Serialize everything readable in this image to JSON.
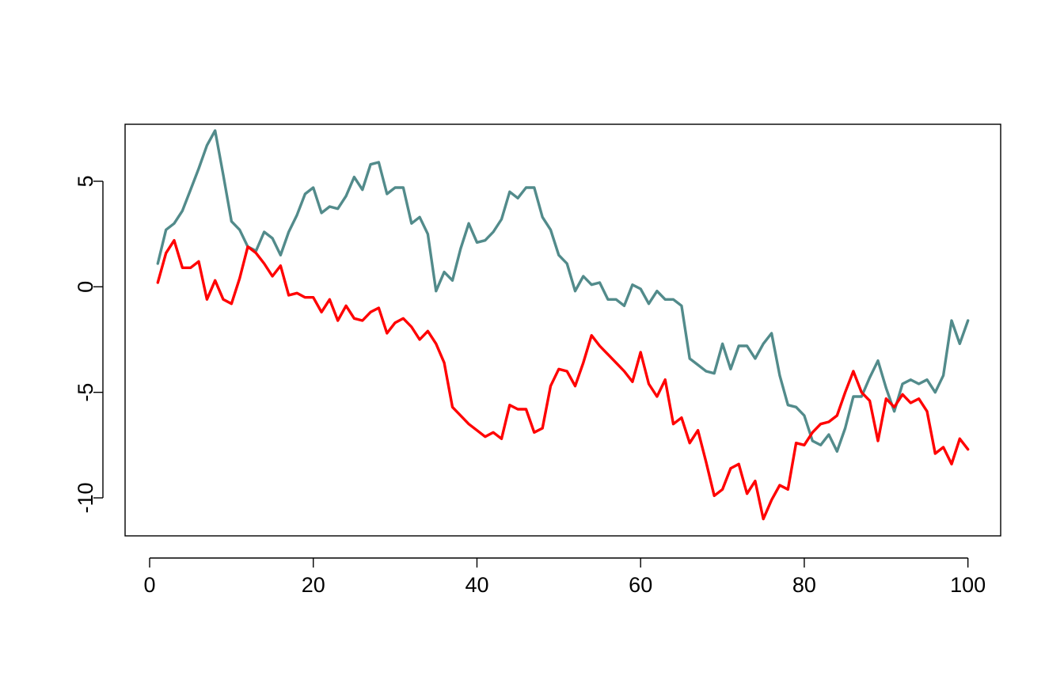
{
  "chart_data": {
    "type": "line",
    "title": "",
    "xlabel": "",
    "ylabel": "",
    "xlim": [
      -3,
      104
    ],
    "ylim": [
      -11.8,
      7.7
    ],
    "grid": false,
    "legend": "none",
    "x_ticks": [
      0,
      20,
      40,
      60,
      80,
      100
    ],
    "x_tick_labels": [
      "0",
      "20",
      "40",
      "60",
      "80",
      "100"
    ],
    "y_ticks": [
      -10,
      -5,
      0,
      5
    ],
    "y_tick_labels": [
      "-10",
      "-5",
      "0",
      "5"
    ],
    "x": [
      1,
      2,
      3,
      4,
      5,
      6,
      7,
      8,
      9,
      10,
      11,
      12,
      13,
      14,
      15,
      16,
      17,
      18,
      19,
      20,
      21,
      22,
      23,
      24,
      25,
      26,
      27,
      28,
      29,
      30,
      31,
      32,
      33,
      34,
      35,
      36,
      37,
      38,
      39,
      40,
      41,
      42,
      43,
      44,
      45,
      46,
      47,
      48,
      49,
      50,
      51,
      52,
      53,
      54,
      55,
      56,
      57,
      58,
      59,
      60,
      61,
      62,
      63,
      64,
      65,
      66,
      67,
      68,
      69,
      70,
      71,
      72,
      73,
      74,
      75,
      76,
      77,
      78,
      79,
      80,
      81,
      82,
      83,
      84,
      85,
      86,
      87,
      88,
      89,
      90,
      91,
      92,
      93,
      94,
      95,
      96,
      97,
      98,
      99,
      100
    ],
    "series": [
      {
        "color": "#528b8b",
        "values": [
          1.1,
          2.7,
          3.0,
          3.6,
          4.6,
          5.6,
          6.7,
          7.4,
          5.3,
          3.1,
          2.7,
          1.9,
          1.7,
          2.6,
          2.3,
          1.5,
          2.6,
          3.4,
          4.4,
          4.7,
          3.5,
          3.8,
          3.7,
          4.3,
          5.2,
          4.6,
          5.8,
          5.9,
          4.4,
          4.7,
          4.7,
          3.0,
          3.3,
          2.5,
          -0.2,
          0.7,
          0.3,
          1.8,
          3.0,
          2.1,
          2.2,
          2.6,
          3.2,
          4.5,
          4.2,
          4.7,
          4.7,
          3.3,
          2.7,
          1.5,
          1.1,
          -0.2,
          0.5,
          0.1,
          0.2,
          -0.6,
          -0.6,
          -0.9,
          0.1,
          -0.1,
          -0.8,
          -0.2,
          -0.6,
          -0.6,
          -0.9,
          -3.4,
          -3.7,
          -4.0,
          -4.1,
          -2.7,
          -3.9,
          -2.8,
          -2.8,
          -3.4,
          -2.7,
          -2.2,
          -4.2,
          -5.6,
          -5.7,
          -6.1,
          -7.3,
          -7.5,
          -7.0,
          -7.8,
          -6.7,
          -5.2,
          -5.2,
          -4.3,
          -3.5,
          -4.8,
          -5.9,
          -4.6,
          -4.4,
          -4.6,
          -4.4,
          -5.0,
          -4.2,
          -1.6,
          -2.7,
          -1.6
        ]
      },
      {
        "color": "#ff0000",
        "values": [
          0.2,
          1.6,
          2.2,
          0.9,
          0.9,
          1.2,
          -0.6,
          0.3,
          -0.6,
          -0.8,
          0.4,
          1.9,
          1.6,
          1.1,
          0.5,
          1.0,
          -0.4,
          -0.3,
          -0.5,
          -0.5,
          -1.2,
          -0.6,
          -1.6,
          -0.9,
          -1.5,
          -1.6,
          -1.2,
          -1.0,
          -2.2,
          -1.7,
          -1.5,
          -1.9,
          -2.5,
          -2.1,
          -2.7,
          -3.6,
          -5.7,
          -6.1,
          -6.5,
          -6.8,
          -7.1,
          -6.9,
          -7.2,
          -5.6,
          -5.8,
          -5.8,
          -6.9,
          -6.7,
          -4.7,
          -3.9,
          -4.0,
          -4.7,
          -3.6,
          -2.3,
          -2.8,
          -3.2,
          -3.6,
          -4.0,
          -4.5,
          -3.1,
          -4.6,
          -5.2,
          -4.4,
          -6.5,
          -6.2,
          -7.4,
          -6.8,
          -8.3,
          -9.9,
          -9.6,
          -8.6,
          -8.4,
          -9.8,
          -9.2,
          -11.0,
          -10.1,
          -9.4,
          -9.6,
          -7.4,
          -7.5,
          -6.9,
          -6.5,
          -6.4,
          -6.1,
          -5.0,
          -4.0,
          -5.0,
          -5.4,
          -7.3,
          -5.3,
          -5.7,
          -5.1,
          -5.5,
          -5.3,
          -5.9,
          -7.9,
          -7.6,
          -8.4,
          -7.2,
          -7.7
        ]
      }
    ]
  }
}
